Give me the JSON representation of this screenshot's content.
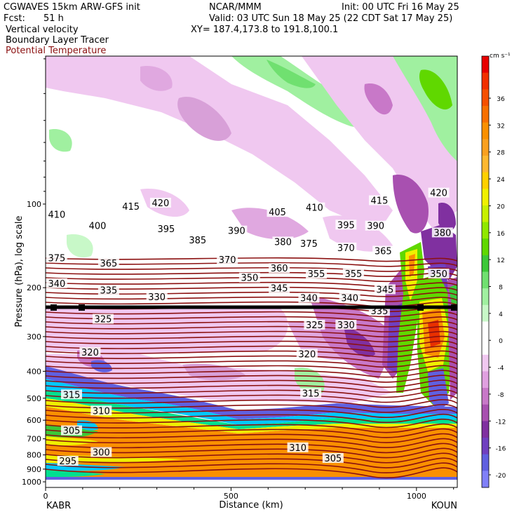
{
  "header": {
    "model": "CGWAVES 15km ARW-GFS init",
    "org": "NCAR/MMM",
    "init": "Init: 00 UTC Fri 16 May 25",
    "fcst_label": "Fcst:",
    "fcst_value": "51 h",
    "valid": "Valid: 03 UTC Sun 18 May 25 (22 CDT Sat 17 May 25)",
    "fields": [
      "Vertical velocity",
      "Boundary Layer Tracer",
      "Potential Temperature"
    ],
    "xy": "XY= 187.4,173.8 to 191.8,100.1"
  },
  "colors": {
    "theta_contour": "#8b1010",
    "bl_tracer": "#000000",
    "potential_temperature_label": "#8b1010"
  },
  "chart_data": {
    "type": "heatmap",
    "xlabel": "Distance (km)",
    "ylabel": "Pressure (hPa), log scale",
    "x_ticks": [
      0,
      500,
      1000
    ],
    "xlim": [
      0,
      1110
    ],
    "x_endpoints": [
      "KABR",
      "KOUN"
    ],
    "y_scale": "log",
    "ylim": [
      1000,
      28
    ],
    "y_ticks": [
      100,
      200,
      300,
      400,
      500,
      600,
      700,
      800,
      900,
      1000
    ],
    "colorbar": {
      "unit": "cm s⁻¹",
      "tick_labels": [
        36,
        32,
        28,
        24,
        20,
        16,
        12,
        8,
        4,
        0,
        -4,
        -8,
        -12,
        -16,
        -20
      ],
      "colors": [
        "#e80000",
        "#f23000",
        "#f65000",
        "#f87000",
        "#fa9000",
        "#faa020",
        "#ffb830",
        "#ffd000",
        "#f0f000",
        "#c8f000",
        "#90e800",
        "#60d800",
        "#3cc838",
        "#70e070",
        "#a0f0a0",
        "#c8f8c8",
        "#ffffff",
        "#ffffff",
        "#f0c8f0",
        "#e0a0e0",
        "#c878c8",
        "#a850b0",
        "#8030a0",
        "#7040c0",
        "#6060e0",
        "#8080f8"
      ]
    },
    "theta_labels": [
      {
        "v": 410,
        "d": 30,
        "p": 110
      },
      {
        "v": 415,
        "d": 230,
        "p": 103
      },
      {
        "v": 420,
        "d": 310,
        "p": 100
      },
      {
        "v": 400,
        "d": 140,
        "p": 121
      },
      {
        "v": 395,
        "d": 325,
        "p": 124
      },
      {
        "v": 385,
        "d": 410,
        "p": 136
      },
      {
        "v": 390,
        "d": 515,
        "p": 126
      },
      {
        "v": 405,
        "d": 625,
        "p": 108
      },
      {
        "v": 410,
        "d": 725,
        "p": 104
      },
      {
        "v": 415,
        "d": 900,
        "p": 98
      },
      {
        "v": 395,
        "d": 810,
        "p": 120
      },
      {
        "v": 390,
        "d": 890,
        "p": 121
      },
      {
        "v": 380,
        "d": 640,
        "p": 138
      },
      {
        "v": 375,
        "d": 710,
        "p": 140
      },
      {
        "v": 370,
        "d": 810,
        "p": 145
      },
      {
        "v": 365,
        "d": 910,
        "p": 149
      },
      {
        "v": 375,
        "d": 30,
        "p": 158
      },
      {
        "v": 365,
        "d": 170,
        "p": 165
      },
      {
        "v": 370,
        "d": 490,
        "p": 160
      },
      {
        "v": 360,
        "d": 630,
        "p": 172
      },
      {
        "v": 350,
        "d": 550,
        "p": 186
      },
      {
        "v": 355,
        "d": 730,
        "p": 180
      },
      {
        "v": 355,
        "d": 830,
        "p": 180
      },
      {
        "v": 345,
        "d": 630,
        "p": 203
      },
      {
        "v": 340,
        "d": 30,
        "p": 195
      },
      {
        "v": 335,
        "d": 170,
        "p": 206
      },
      {
        "v": 330,
        "d": 300,
        "p": 218
      },
      {
        "v": 340,
        "d": 710,
        "p": 220
      },
      {
        "v": 340,
        "d": 820,
        "p": 220
      },
      {
        "v": 345,
        "d": 915,
        "p": 205
      },
      {
        "v": 335,
        "d": 900,
        "p": 245
      },
      {
        "v": 325,
        "d": 155,
        "p": 262
      },
      {
        "v": 325,
        "d": 725,
        "p": 275
      },
      {
        "v": 330,
        "d": 810,
        "p": 275
      },
      {
        "v": 320,
        "d": 120,
        "p": 345
      },
      {
        "v": 320,
        "d": 705,
        "p": 350
      },
      {
        "v": 315,
        "d": 70,
        "p": 490
      },
      {
        "v": 315,
        "d": 715,
        "p": 485
      },
      {
        "v": 310,
        "d": 150,
        "p": 560
      },
      {
        "v": 305,
        "d": 70,
        "p": 660
      },
      {
        "v": 300,
        "d": 150,
        "p": 790
      },
      {
        "v": 295,
        "d": 60,
        "p": 850
      },
      {
        "v": 310,
        "d": 680,
        "p": 760
      },
      {
        "v": 305,
        "d": 775,
        "p": 830
      },
      {
        "v": 420,
        "d": 1060,
        "p": 92
      },
      {
        "v": 380,
        "d": 1070,
        "p": 128
      },
      {
        "v": 350,
        "d": 1060,
        "p": 180
      }
    ]
  }
}
